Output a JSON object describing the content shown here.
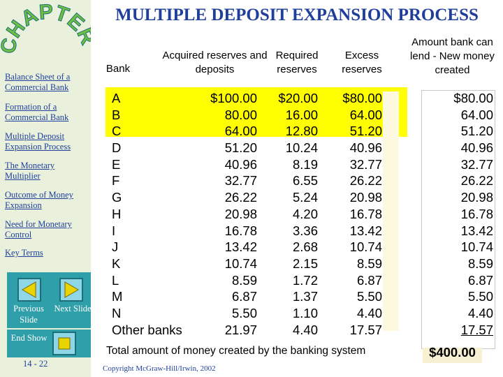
{
  "sidebar": {
    "logo_text": "CHAPTER",
    "links": [
      {
        "label": "Balance Sheet of a Commercial Bank"
      },
      {
        "label": "Formation of a Commercial Bank"
      },
      {
        "label": "Multiple Deposit Expansion Process"
      },
      {
        "label": "The Monetary Multiplier"
      },
      {
        "label": "Outcome of Money Expansion"
      },
      {
        "label": "Need for Monetary Control"
      },
      {
        "label": "Key Terms"
      }
    ],
    "previous_label": "Previous Slide",
    "next_label": "Next Slide",
    "end_label": "End Show",
    "slide_number": "14 - 22",
    "button_color": "#2f9fa9"
  },
  "title": "MULTIPLE DEPOSIT EXPANSION PROCESS",
  "table": {
    "headers": {
      "bank": "Bank",
      "acquired": "Acquired reserves and deposits",
      "required": "Required reserves",
      "excess": "Excess reserves",
      "lend": "Amount bank can lend - New money created"
    },
    "rows": [
      {
        "bank": "A",
        "acquired": "$100.00",
        "required": "$20.00",
        "excess": "$80.00",
        "lend": "$80.00"
      },
      {
        "bank": "B",
        "acquired": "80.00",
        "required": "16.00",
        "excess": "64.00",
        "lend": "64.00"
      },
      {
        "bank": "C",
        "acquired": "64.00",
        "required": "12.80",
        "excess": "51.20",
        "lend": "51.20"
      },
      {
        "bank": "D",
        "acquired": "51.20",
        "required": "10.24",
        "excess": "40.96",
        "lend": "40.96"
      },
      {
        "bank": "E",
        "acquired": "40.96",
        "required": "8.19",
        "excess": "32.77",
        "lend": "32.77"
      },
      {
        "bank": "F",
        "acquired": "32.77",
        "required": "6.55",
        "excess": "26.22",
        "lend": "26.22"
      },
      {
        "bank": "G",
        "acquired": "26.22",
        "required": "5.24",
        "excess": "20.98",
        "lend": "20.98"
      },
      {
        "bank": "H",
        "acquired": "20.98",
        "required": "4.20",
        "excess": "16.78",
        "lend": "16.78"
      },
      {
        "bank": "I",
        "acquired": "16.78",
        "required": "3.36",
        "excess": "13.42",
        "lend": "13.42"
      },
      {
        "bank": "J",
        "acquired": "13.42",
        "required": "2.68",
        "excess": "10.74",
        "lend": "10.74"
      },
      {
        "bank": "K",
        "acquired": "10.74",
        "required": "2.15",
        "excess": "8.59",
        "lend": "8.59"
      },
      {
        "bank": "L",
        "acquired": "8.59",
        "required": "1.72",
        "excess": "6.87",
        "lend": "6.87"
      },
      {
        "bank": "M",
        "acquired": "6.87",
        "required": "1.37",
        "excess": "5.50",
        "lend": "5.50"
      },
      {
        "bank": "N",
        "acquired": "5.50",
        "required": "1.10",
        "excess": "4.40",
        "lend": "4.40"
      },
      {
        "bank": "Other banks",
        "acquired": "21.97",
        "required": "4.40",
        "excess": "17.57",
        "lend": "17.57"
      }
    ],
    "highlight_color": "#ffff00"
  },
  "total": {
    "label": "Total amount of money created by the banking system",
    "value": "$400.00"
  },
  "copyright": "Copyright McGraw-Hill/Irwin, 2002"
}
